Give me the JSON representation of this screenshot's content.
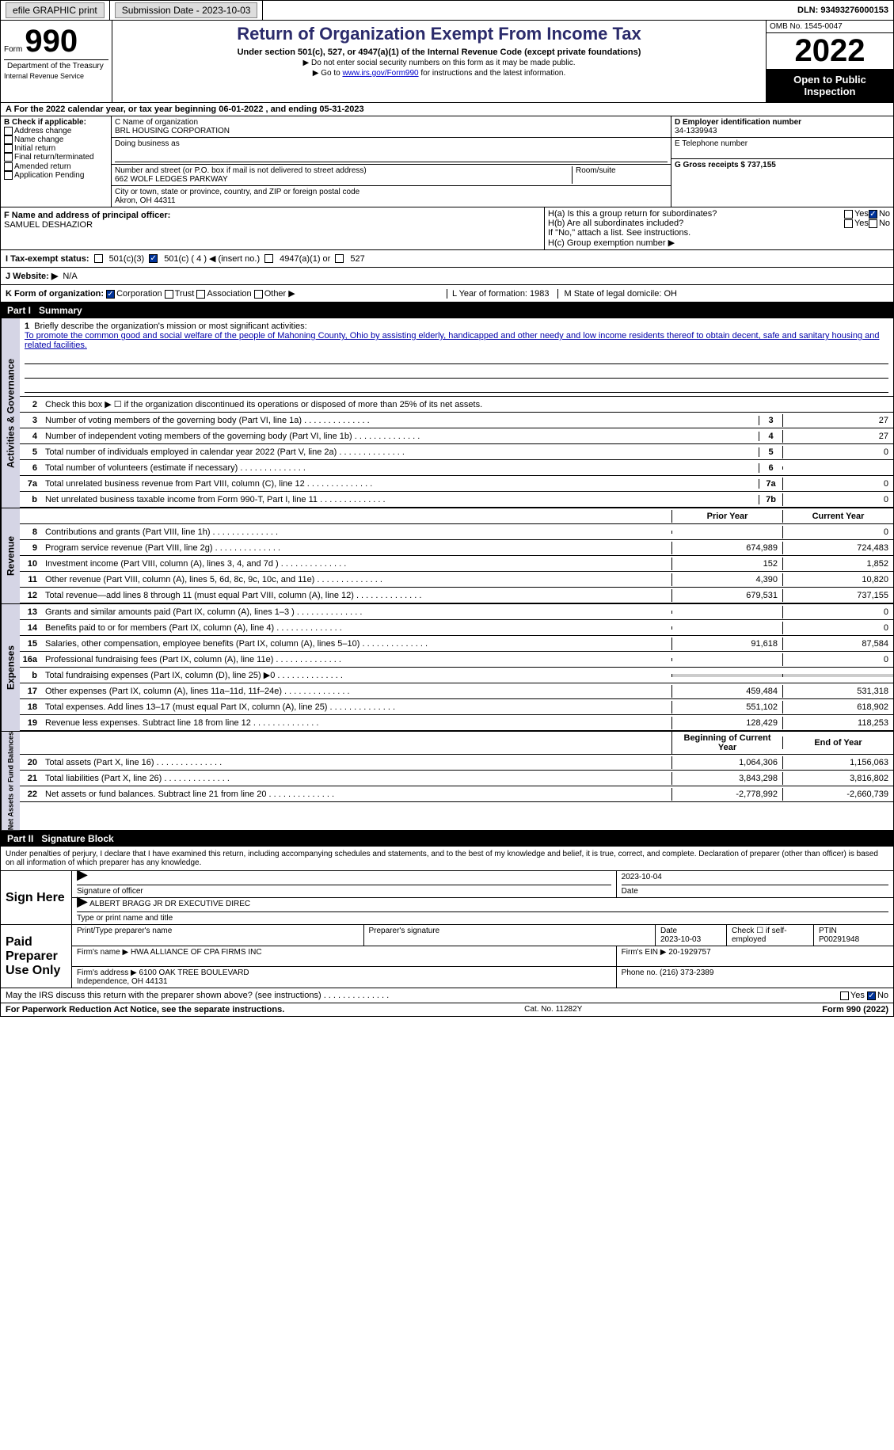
{
  "topbar": {
    "efile_label": "efile GRAPHIC print",
    "submission_label": "Submission Date - 2023-10-03",
    "dln_label": "DLN: 93493276000153"
  },
  "header": {
    "form_label": "Form",
    "form_number": "990",
    "title": "Return of Organization Exempt From Income Tax",
    "subtitle": "Under section 501(c), 527, or 4947(a)(1) of the Internal Revenue Code (except private foundations)",
    "note1": "▶ Do not enter social security numbers on this form as it may be made public.",
    "note2_pre": "▶ Go to ",
    "note2_link": "www.irs.gov/Form990",
    "note2_post": " for instructions and the latest information.",
    "omb": "OMB No. 1545-0047",
    "year": "2022",
    "open_public": "Open to Public Inspection",
    "dept": "Department of the Treasury",
    "service": "Internal Revenue Service"
  },
  "line_a": {
    "text": "For the 2022 calendar year, or tax year beginning 06-01-2022   , and ending 05-31-2023",
    "prefix": "A"
  },
  "box_b": {
    "label": "B Check if applicable:",
    "opts": [
      "Address change",
      "Name change",
      "Initial return",
      "Final return/terminated",
      "Amended return",
      "Application Pending"
    ]
  },
  "box_c": {
    "name_label": "C Name of organization",
    "name": "BRL HOUSING CORPORATION",
    "dba_label": "Doing business as",
    "street_label": "Number and street (or P.O. box if mail is not delivered to street address)",
    "room_label": "Room/suite",
    "street": "662 WOLF LEDGES PARKWAY",
    "city_label": "City or town, state or province, country, and ZIP or foreign postal code",
    "city": "Akron, OH  44311"
  },
  "box_d": {
    "label": "D Employer identification number",
    "value": "34-1339943",
    "phone_label": "E Telephone number",
    "gross_label": "G Gross receipts $ 737,155"
  },
  "box_f": {
    "label": "F Name and address of principal officer:",
    "name": "SAMUEL DESHAZIOR"
  },
  "box_h": {
    "ha_label": "H(a)  Is this a group return for subordinates?",
    "hb_label": "H(b)  Are all subordinates included?",
    "hb_note": "If \"No,\" attach a list. See instructions.",
    "hc_label": "H(c)  Group exemption number ▶",
    "yes": "Yes",
    "no": "No"
  },
  "tax_status": {
    "label": "I   Tax-exempt status:",
    "c3": "501(c)(3)",
    "c_other": "501(c) ( 4 ) ◀ (insert no.)",
    "a1": "4947(a)(1) or",
    "s527": "527"
  },
  "website": {
    "label": "J   Website: ▶",
    "value": "N/A"
  },
  "form_org": {
    "label": "K Form of organization:",
    "corp": "Corporation",
    "trust": "Trust",
    "assoc": "Association",
    "other": "Other ▶",
    "year_label": "L Year of formation: 1983",
    "state_label": "M State of legal domicile: OH"
  },
  "part1": {
    "part": "Part I",
    "title": "Summary",
    "q1_label": "Briefly describe the organization's mission or most significant activities:",
    "q1_text": "To promote the common good and social welfare of the people of Mahoning County, Ohio by assisting elderly, handicapped and other needy and low income residents thereof to obtain decent, safe and sanitary housing and related facilities.",
    "q2": "Check this box ▶ ☐ if the organization discontinued its operations or disposed of more than 25% of its net assets.",
    "vert_activities": "Activities & Governance",
    "vert_revenue": "Revenue",
    "vert_expenses": "Expenses",
    "vert_netassets": "Net Assets or Fund Balances",
    "prior_year": "Prior Year",
    "current_year": "Current Year",
    "begin_year": "Beginning of Current Year",
    "end_year": "End of Year",
    "rows_gov": [
      {
        "n": "3",
        "label": "Number of voting members of the governing body (Part VI, line 1a)",
        "cell": "3",
        "val": "27"
      },
      {
        "n": "4",
        "label": "Number of independent voting members of the governing body (Part VI, line 1b)",
        "cell": "4",
        "val": "27"
      },
      {
        "n": "5",
        "label": "Total number of individuals employed in calendar year 2022 (Part V, line 2a)",
        "cell": "5",
        "val": "0"
      },
      {
        "n": "6",
        "label": "Total number of volunteers (estimate if necessary)",
        "cell": "6",
        "val": ""
      },
      {
        "n": "7a",
        "label": "Total unrelated business revenue from Part VIII, column (C), line 12",
        "cell": "7a",
        "val": "0"
      },
      {
        "n": "b",
        "label": "Net unrelated business taxable income from Form 990-T, Part I, line 11",
        "cell": "7b",
        "val": "0"
      }
    ],
    "rows_rev": [
      {
        "n": "8",
        "label": "Contributions and grants (Part VIII, line 1h)",
        "prior": "",
        "curr": "0"
      },
      {
        "n": "9",
        "label": "Program service revenue (Part VIII, line 2g)",
        "prior": "674,989",
        "curr": "724,483"
      },
      {
        "n": "10",
        "label": "Investment income (Part VIII, column (A), lines 3, 4, and 7d )",
        "prior": "152",
        "curr": "1,852"
      },
      {
        "n": "11",
        "label": "Other revenue (Part VIII, column (A), lines 5, 6d, 8c, 9c, 10c, and 11e)",
        "prior": "4,390",
        "curr": "10,820"
      },
      {
        "n": "12",
        "label": "Total revenue—add lines 8 through 11 (must equal Part VIII, column (A), line 12)",
        "prior": "679,531",
        "curr": "737,155"
      }
    ],
    "rows_exp": [
      {
        "n": "13",
        "label": "Grants and similar amounts paid (Part IX, column (A), lines 1–3 )",
        "prior": "",
        "curr": "0"
      },
      {
        "n": "14",
        "label": "Benefits paid to or for members (Part IX, column (A), line 4)",
        "prior": "",
        "curr": "0"
      },
      {
        "n": "15",
        "label": "Salaries, other compensation, employee benefits (Part IX, column (A), lines 5–10)",
        "prior": "91,618",
        "curr": "87,584"
      },
      {
        "n": "16a",
        "label": "Professional fundraising fees (Part IX, column (A), line 11e)",
        "prior": "",
        "curr": "0"
      },
      {
        "n": "b",
        "label": "Total fundraising expenses (Part IX, column (D), line 25) ▶0",
        "prior": "SHADE",
        "curr": "SHADE"
      },
      {
        "n": "17",
        "label": "Other expenses (Part IX, column (A), lines 11a–11d, 11f–24e)",
        "prior": "459,484",
        "curr": "531,318"
      },
      {
        "n": "18",
        "label": "Total expenses. Add lines 13–17 (must equal Part IX, column (A), line 25)",
        "prior": "551,102",
        "curr": "618,902"
      },
      {
        "n": "19",
        "label": "Revenue less expenses. Subtract line 18 from line 12",
        "prior": "128,429",
        "curr": "118,253"
      }
    ],
    "rows_net": [
      {
        "n": "20",
        "label": "Total assets (Part X, line 16)",
        "prior": "1,064,306",
        "curr": "1,156,063"
      },
      {
        "n": "21",
        "label": "Total liabilities (Part X, line 26)",
        "prior": "3,843,298",
        "curr": "3,816,802"
      },
      {
        "n": "22",
        "label": "Net assets or fund balances. Subtract line 21 from line 20",
        "prior": "-2,778,992",
        "curr": "-2,660,739"
      }
    ]
  },
  "part2": {
    "part": "Part II",
    "title": "Signature Block",
    "declaration": "Under penalties of perjury, I declare that I have examined this return, including accompanying schedules and statements, and to the best of my knowledge and belief, it is true, correct, and complete. Declaration of preparer (other than officer) is based on all information of which preparer has any knowledge."
  },
  "sign_here": {
    "label": "Sign Here",
    "sig_label": "Signature of officer",
    "date_label": "Date",
    "date_val": "2023-10-04",
    "name_label": "Type or print name and title",
    "name_val": "ALBERT BRAGG JR DR  EXECUTIVE DIREC"
  },
  "paid_prep": {
    "label": "Paid Preparer Use Only",
    "col_print": "Print/Type preparer's name",
    "col_sig": "Preparer's signature",
    "col_date": "Date",
    "date_val": "2023-10-03",
    "col_check": "Check ☐ if self-employed",
    "col_ptin": "PTIN",
    "ptin_val": "P00291948",
    "firm_name_label": "Firm's name    ▶",
    "firm_name": "HWA ALLIANCE OF CPA FIRMS INC",
    "firm_ein_label": "Firm's EIN ▶ 20-1929757",
    "firm_addr_label": "Firm's address ▶",
    "firm_addr1": "6100 OAK TREE BOULEVARD",
    "firm_addr2": "Independence, OH  44131",
    "phone_label": "Phone no. (216) 373-2389"
  },
  "irs_discuss": {
    "question": "May the IRS discuss this return with the preparer shown above? (see instructions)",
    "yes": "Yes",
    "no": "No"
  },
  "footer": {
    "left": "For Paperwork Reduction Act Notice, see the separate instructions.",
    "mid": "Cat. No. 11282Y",
    "right": "Form 990 (2022)"
  }
}
